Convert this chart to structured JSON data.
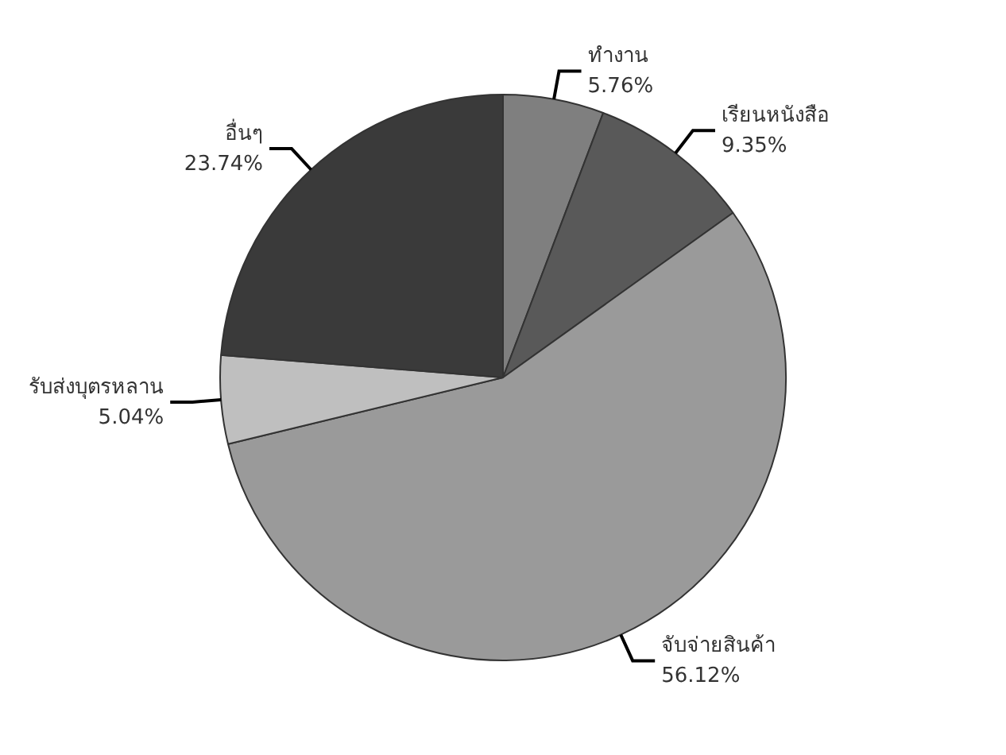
{
  "chart_data": {
    "type": "pie",
    "categories": [
      "ทำงาน",
      "เรียนหนังสือ",
      "จับจ่ายสินค้า",
      "รับส่งบุตรหลาน",
      "อื่นๆ"
    ],
    "values": [
      5.76,
      9.35,
      56.12,
      5.04,
      23.74
    ],
    "colors": [
      "#7f7f7f",
      "#595959",
      "#9a9a9a",
      "#bfbfbf",
      "#3a3a3a"
    ],
    "value_labels": [
      "5.76%",
      "9.35%",
      "56.12%",
      "5.04%",
      "23.74%"
    ],
    "legend": false
  }
}
